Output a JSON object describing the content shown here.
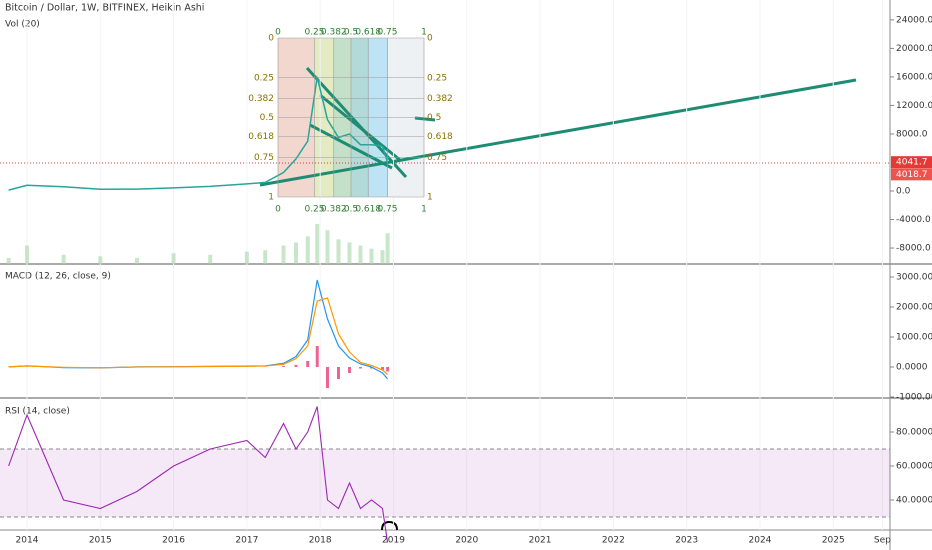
{
  "chart_data": [
    {
      "type": "line",
      "title": "Bitcoin / Dollar, 1W, BITFINEX, Heikin Ashi",
      "subtitle": "Vol (20)",
      "x": [
        2013.75,
        2014.0,
        2014.5,
        2015.0,
        2015.5,
        2016.0,
        2016.5,
        2017.0,
        2017.25,
        2017.5,
        2017.67,
        2017.83,
        2017.96,
        2018.1,
        2018.25,
        2018.4,
        2018.55,
        2018.7,
        2018.85,
        2018.92
      ],
      "series": [
        {
          "color": "#26a69a",
          "values": [
            120,
            800,
            600,
            250,
            260,
            430,
            650,
            1000,
            1200,
            2600,
            4500,
            7000,
            16000,
            10000,
            7500,
            8000,
            6500,
            6500,
            6300,
            4000
          ]
        }
      ],
      "volume": [
        20,
        60,
        30,
        25,
        20,
        35,
        30,
        40,
        45,
        60,
        70,
        90,
        130,
        110,
        80,
        70,
        60,
        50,
        45,
        100
      ],
      "last_price": 4041.7,
      "last_close": 4018.7,
      "fib_levels": [
        0,
        0.25,
        0.382,
        0.5,
        0.618,
        0.75,
        1
      ],
      "xlim": [
        2013.632,
        2025.774
      ],
      "xticks": [
        2014,
        2015,
        2016,
        2017,
        2018,
        2019,
        2020,
        2021,
        2022,
        2023,
        2024,
        2025,
        {
          "value": 2025.67,
          "label": "Sep"
        }
      ],
      "ylim": [
        -10240,
        26790
      ],
      "yticks": [
        {
          "value": 24000,
          "label": "24000.0"
        },
        {
          "value": 20000,
          "label": "20000.0"
        },
        {
          "value": 16000,
          "label": "16000.0"
        },
        {
          "value": 12000,
          "label": "12000.0"
        },
        {
          "value": 8000,
          "label": "8000.0"
        },
        {
          "value": 0,
          "label": "0.0"
        },
        {
          "value": -4000,
          "label": "-4000.0"
        },
        {
          "value": -8000,
          "label": "-8000.0"
        }
      ]
    },
    {
      "type": "macd",
      "title": "MACD (12, 26, close, 9)",
      "x": [
        2013.75,
        2014.0,
        2014.5,
        2015.0,
        2015.5,
        2016.0,
        2016.5,
        2017.0,
        2017.25,
        2017.5,
        2017.67,
        2017.83,
        2017.96,
        2018.1,
        2018.25,
        2018.4,
        2018.55,
        2018.7,
        2018.85,
        2018.92
      ],
      "series": [
        {
          "color": "#2196f3",
          "values": [
            5,
            40,
            -20,
            -30,
            5,
            10,
            20,
            30,
            40,
            120,
            350,
            900,
            2900,
            1600,
            700,
            300,
            100,
            0,
            -200,
            -400
          ]
        },
        {
          "color": "#ff9800",
          "values": [
            5,
            35,
            -10,
            -25,
            0,
            8,
            18,
            25,
            35,
            90,
            280,
            700,
            2200,
            2300,
            1100,
            500,
            150,
            50,
            -100,
            -250
          ]
        }
      ],
      "histogram": {
        "color": "#f06292",
        "values": [
          0,
          5,
          -10,
          -5,
          5,
          2,
          2,
          5,
          5,
          30,
          70,
          200,
          700,
          -700,
          -400,
          -200,
          -50,
          -50,
          -100,
          -150
        ]
      },
      "ylim": [
        -1033,
        3433
      ],
      "yticks": [
        {
          "value": 3000,
          "label": "3000.0000"
        },
        {
          "value": 2000,
          "label": "2000.0000"
        },
        {
          "value": 1000,
          "label": "1000.0000"
        },
        {
          "value": 0,
          "label": "0.0000"
        },
        {
          "value": -1000,
          "label": "-1000.0000"
        }
      ]
    },
    {
      "type": "rsi",
      "title": "RSI (14, close)",
      "x": [
        2013.75,
        2014.0,
        2014.5,
        2015.0,
        2015.5,
        2016.0,
        2016.5,
        2017.0,
        2017.25,
        2017.5,
        2017.67,
        2017.83,
        2017.96,
        2018.1,
        2018.25,
        2018.4,
        2018.55,
        2018.7,
        2018.85,
        2018.92
      ],
      "series": [
        {
          "color": "#9c27b0",
          "values": [
            60,
            90,
            40,
            35,
            45,
            60,
            70,
            75,
            65,
            85,
            70,
            80,
            95,
            40,
            35,
            50,
            35,
            40,
            35,
            15
          ]
        }
      ],
      "band": [
        30,
        70
      ],
      "ylim": [
        22.35,
        100
      ],
      "yticks": [
        {
          "value": 80,
          "label": "80.0000"
        },
        {
          "value": 60,
          "label": "60.0000"
        },
        {
          "value": 40,
          "label": "40.0000"
        }
      ]
    }
  ]
}
